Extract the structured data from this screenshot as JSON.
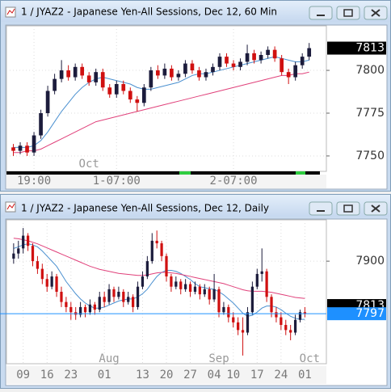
{
  "chart_data": [
    {
      "type": "candlestick",
      "title": "1 / JYAZ2 - Japanese Yen-All Sessions, Dec 12, 60 Min",
      "up_color": "#1c1c3c",
      "down_color": "#d01010",
      "ylim": [
        7741,
        7826
      ],
      "yticks": [
        7800,
        7775,
        7750
      ],
      "xlim": [
        -1,
        45.5
      ],
      "grid": true,
      "xticks": [
        {
          "value": 3,
          "label": "19:00"
        },
        {
          "value": 15,
          "label": "1-07:00"
        },
        {
          "value": 32,
          "label": "2-07:00"
        }
      ],
      "xticks_upper": [
        {
          "value": 11,
          "label": "Oct"
        }
      ],
      "markers": [
        {
          "value": 7813,
          "color": "#000000"
        }
      ],
      "ohlc": [
        [
          7755,
          7757,
          7750,
          7753
        ],
        [
          7753,
          7758,
          7751,
          7756
        ],
        [
          7756,
          7758,
          7750,
          7752
        ],
        [
          7752,
          7764,
          7750,
          7762
        ],
        [
          7762,
          7777,
          7760,
          7775
        ],
        [
          7775,
          7791,
          7773,
          7788
        ],
        [
          7788,
          7798,
          7786,
          7795
        ],
        [
          7795,
          7806,
          7793,
          7800
        ],
        [
          7800,
          7803,
          7794,
          7796
        ],
        [
          7796,
          7804,
          7794,
          7802
        ],
        [
          7802,
          7804,
          7795,
          7797
        ],
        [
          7797,
          7799,
          7791,
          7793
        ],
        [
          7793,
          7801,
          7791,
          7799
        ],
        [
          7799,
          7801,
          7788,
          7790
        ],
        [
          7790,
          7792,
          7784,
          7786
        ],
        [
          7786,
          7794,
          7784,
          7792
        ],
        [
          7792,
          7794,
          7786,
          7788
        ],
        [
          7788,
          7790,
          7781,
          7783
        ],
        [
          7783,
          7785,
          7776,
          7781
        ],
        [
          7781,
          7792,
          7779,
          7790
        ],
        [
          7790,
          7802,
          7788,
          7800
        ],
        [
          7800,
          7803,
          7795,
          7797
        ],
        [
          7797,
          7804,
          7795,
          7801
        ],
        [
          7801,
          7803,
          7794,
          7796
        ],
        [
          7796,
          7800,
          7794,
          7798
        ],
        [
          7798,
          7806,
          7796,
          7804
        ],
        [
          7804,
          7806,
          7798,
          7800
        ],
        [
          7800,
          7802,
          7794,
          7796
        ],
        [
          7796,
          7801,
          7794,
          7799
        ],
        [
          7799,
          7804,
          7797,
          7802
        ],
        [
          7802,
          7810,
          7800,
          7808
        ],
        [
          7808,
          7810,
          7802,
          7804
        ],
        [
          7804,
          7806,
          7800,
          7802
        ],
        [
          7802,
          7807,
          7800,
          7805
        ],
        [
          7805,
          7815,
          7803,
          7810
        ],
        [
          7810,
          7812,
          7804,
          7806
        ],
        [
          7806,
          7811,
          7804,
          7809
        ],
        [
          7809,
          7814,
          7807,
          7812
        ],
        [
          7812,
          7814,
          7805,
          7807
        ],
        [
          7807,
          7809,
          7797,
          7799
        ],
        [
          7799,
          7801,
          7792,
          7796
        ],
        [
          7796,
          7805,
          7794,
          7803
        ],
        [
          7803,
          7810,
          7801,
          7808
        ],
        [
          7808,
          7816,
          7806,
          7813
        ]
      ],
      "lines": [
        {
          "color": "#4a90d0",
          "values": [
            7755,
            7755,
            7755,
            7756,
            7759,
            7764,
            7770,
            7776,
            7781,
            7786,
            7790,
            7793,
            7795,
            7796,
            7795,
            7794,
            7793,
            7792,
            7790,
            7789,
            7789,
            7790,
            7791,
            7792,
            7793,
            7795,
            7797,
            7798,
            7798,
            7799,
            7800,
            7801,
            7802,
            7803,
            7804,
            7805,
            7806,
            7807,
            7808,
            7807,
            7806,
            7805,
            7805,
            7806
          ]
        },
        {
          "color": "#e0407a",
          "values": [
            7752,
            7752,
            7753,
            7753,
            7754,
            7756,
            7758,
            7760,
            7762,
            7764,
            7766,
            7768,
            7770,
            7771,
            7772,
            7773,
            7774,
            7775,
            7776,
            7777,
            7778,
            7779,
            7780,
            7781,
            7782,
            7783,
            7784,
            7785,
            7786,
            7787,
            7788,
            7789,
            7790,
            7791,
            7792,
            7793,
            7794,
            7795,
            7796,
            7797,
            7797,
            7798,
            7798,
            7799
          ]
        }
      ]
    },
    {
      "type": "candlestick",
      "title": "1 / JYAZ2 - Japanese Yen-All Sessions, Dec 12, Daily",
      "up_color": "#1c1c3c",
      "down_color": "#d01010",
      "ylim": [
        7699,
        7981
      ],
      "yticks": [
        7900
      ],
      "xlim": [
        -1.5,
        65.5
      ],
      "grid": true,
      "xticks": [
        {
          "value": 2,
          "label": "09"
        },
        {
          "value": 7,
          "label": "16"
        },
        {
          "value": 12,
          "label": "23"
        },
        {
          "value": 19,
          "label": "01"
        },
        {
          "value": 27,
          "label": "13"
        },
        {
          "value": 32,
          "label": "20"
        },
        {
          "value": 37,
          "label": "27"
        },
        {
          "value": 42,
          "label": "04"
        },
        {
          "value": 46,
          "label": "10"
        },
        {
          "value": 51,
          "label": "17"
        },
        {
          "value": 56,
          "label": "24"
        },
        {
          "value": 61,
          "label": "01"
        }
      ],
      "xticks_upper": [
        {
          "value": 20,
          "label": "Aug"
        },
        {
          "value": 43,
          "label": "Sep"
        },
        {
          "value": 62,
          "label": "Oct"
        }
      ],
      "markers": [
        {
          "value": 7813,
          "color": "#000000"
        },
        {
          "value": 7797,
          "color": "#1e90ff"
        }
      ],
      "ohlc": [
        [
          7905,
          7935,
          7895,
          7915
        ],
        [
          7915,
          7940,
          7905,
          7925
        ],
        [
          7925,
          7965,
          7915,
          7950
        ],
        [
          7950,
          7955,
          7920,
          7930
        ],
        [
          7930,
          7935,
          7890,
          7900
        ],
        [
          7900,
          7910,
          7875,
          7885
        ],
        [
          7885,
          7895,
          7855,
          7865
        ],
        [
          7865,
          7875,
          7840,
          7850
        ],
        [
          7850,
          7880,
          7845,
          7870
        ],
        [
          7870,
          7875,
          7830,
          7840
        ],
        [
          7840,
          7850,
          7810,
          7820
        ],
        [
          7820,
          7830,
          7800,
          7810
        ],
        [
          7810,
          7820,
          7785,
          7800
        ],
        [
          7800,
          7810,
          7785,
          7795
        ],
        [
          7795,
          7820,
          7790,
          7810
        ],
        [
          7810,
          7815,
          7790,
          7800
        ],
        [
          7800,
          7825,
          7795,
          7815
        ],
        [
          7815,
          7820,
          7795,
          7805
        ],
        [
          7805,
          7840,
          7800,
          7830
        ],
        [
          7830,
          7840,
          7810,
          7820
        ],
        [
          7820,
          7855,
          7815,
          7845
        ],
        [
          7845,
          7850,
          7820,
          7830
        ],
        [
          7830,
          7850,
          7825,
          7840
        ],
        [
          7840,
          7845,
          7810,
          7820
        ],
        [
          7820,
          7840,
          7815,
          7830
        ],
        [
          7830,
          7835,
          7800,
          7810
        ],
        [
          7810,
          7860,
          7805,
          7850
        ],
        [
          7850,
          7880,
          7845,
          7870
        ],
        [
          7870,
          7910,
          7865,
          7900
        ],
        [
          7900,
          7955,
          7895,
          7940
        ],
        [
          7940,
          7960,
          7925,
          7935
        ],
        [
          7935,
          7940,
          7900,
          7910
        ],
        [
          7910,
          7915,
          7860,
          7870
        ],
        [
          7870,
          7875,
          7840,
          7850
        ],
        [
          7850,
          7870,
          7845,
          7860
        ],
        [
          7860,
          7865,
          7835,
          7845
        ],
        [
          7845,
          7865,
          7840,
          7855
        ],
        [
          7855,
          7860,
          7830,
          7840
        ],
        [
          7840,
          7860,
          7835,
          7850
        ],
        [
          7850,
          7855,
          7825,
          7835
        ],
        [
          7835,
          7855,
          7830,
          7845
        ],
        [
          7845,
          7850,
          7815,
          7825
        ],
        [
          7825,
          7875,
          7820,
          7845
        ],
        [
          7845,
          7850,
          7790,
          7800
        ],
        [
          7800,
          7820,
          7795,
          7810
        ],
        [
          7810,
          7815,
          7780,
          7790
        ],
        [
          7790,
          7800,
          7770,
          7780
        ],
        [
          7780,
          7790,
          7755,
          7765
        ],
        [
          7765,
          7790,
          7715,
          7760
        ],
        [
          7760,
          7810,
          7755,
          7800
        ],
        [
          7800,
          7860,
          7795,
          7850
        ],
        [
          7850,
          7885,
          7845,
          7875
        ],
        [
          7875,
          7925,
          7860,
          7880
        ],
        [
          7880,
          7885,
          7820,
          7830
        ],
        [
          7830,
          7835,
          7790,
          7800
        ],
        [
          7800,
          7810,
          7780,
          7790
        ],
        [
          7790,
          7800,
          7765,
          7775
        ],
        [
          7775,
          7785,
          7755,
          7765
        ],
        [
          7765,
          7775,
          7745,
          7760
        ],
        [
          7760,
          7795,
          7755,
          7785
        ],
        [
          7785,
          7805,
          7780,
          7800
        ],
        [
          7800,
          7810,
          7790,
          7797
        ]
      ],
      "lines": [
        {
          "color": "#4a90d0",
          "values": [
            7925,
            7928,
            7932,
            7934,
            7932,
            7928,
            7920,
            7910,
            7900,
            7890,
            7875,
            7860,
            7848,
            7836,
            7826,
            7818,
            7812,
            7808,
            7808,
            7810,
            7814,
            7818,
            7822,
            7824,
            7826,
            7826,
            7830,
            7836,
            7845,
            7858,
            7870,
            7878,
            7882,
            7882,
            7880,
            7876,
            7870,
            7864,
            7856,
            7850,
            7848,
            7846,
            7845,
            7840,
            7834,
            7826,
            7818,
            7808,
            7798,
            7792,
            7794,
            7800,
            7808,
            7812,
            7812,
            7810,
            7805,
            7798,
            7792,
            7788,
            7786,
            7786
          ]
        },
        {
          "color": "#e0407a",
          "values": [
            7945,
            7944,
            7942,
            7940,
            7937,
            7934,
            7930,
            7926,
            7922,
            7918,
            7914,
            7910,
            7906,
            7902,
            7898,
            7894,
            7890,
            7887,
            7884,
            7882,
            7880,
            7878,
            7876,
            7875,
            7874,
            7873,
            7872,
            7872,
            7873,
            7875,
            7877,
            7878,
            7878,
            7877,
            7876,
            7874,
            7872,
            7870,
            7868,
            7866,
            7864,
            7862,
            7860,
            7858,
            7856,
            7853,
            7850,
            7847,
            7844,
            7842,
            7841,
            7841,
            7841,
            7840,
            7839,
            7837,
            7835,
            7833,
            7831,
            7829,
            7828,
            7827
          ]
        }
      ]
    }
  ]
}
